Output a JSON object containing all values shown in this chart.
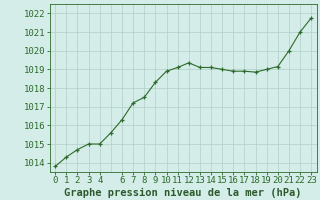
{
  "x": [
    0,
    1,
    2,
    3,
    4,
    5,
    6,
    7,
    8,
    9,
    10,
    11,
    12,
    13,
    14,
    15,
    16,
    17,
    18,
    19,
    20,
    21,
    22,
    23
  ],
  "y": [
    1013.8,
    1014.3,
    1014.7,
    1015.0,
    1015.0,
    1015.6,
    1016.3,
    1017.2,
    1017.5,
    1018.3,
    1018.9,
    1019.1,
    1019.35,
    1019.1,
    1019.1,
    1019.0,
    1018.9,
    1018.9,
    1018.85,
    1019.0,
    1019.15,
    1020.0,
    1021.0,
    1021.75
  ],
  "ylim": [
    1013.5,
    1022.5
  ],
  "xlim": [
    -0.5,
    23.5
  ],
  "yticks": [
    1014,
    1015,
    1016,
    1017,
    1018,
    1019,
    1020,
    1021,
    1022
  ],
  "xticks": [
    0,
    1,
    2,
    3,
    4,
    6,
    7,
    8,
    9,
    10,
    11,
    12,
    13,
    14,
    15,
    16,
    17,
    18,
    19,
    20,
    21,
    22,
    23
  ],
  "line_color": "#2d6a2d",
  "marker": "+",
  "plot_bg_color": "#d4ede8",
  "fig_bg_color": "#d4ede8",
  "grid_color": "#b0cfc8",
  "xlabel": "Graphe pression niveau de la mer (hPa)",
  "xlabel_color": "#2d5a2d",
  "xlabel_bg": "#c8e0d8",
  "tick_color": "#2d6a2d",
  "tick_label_fontsize": 6.5,
  "xlabel_fontsize": 7.5
}
